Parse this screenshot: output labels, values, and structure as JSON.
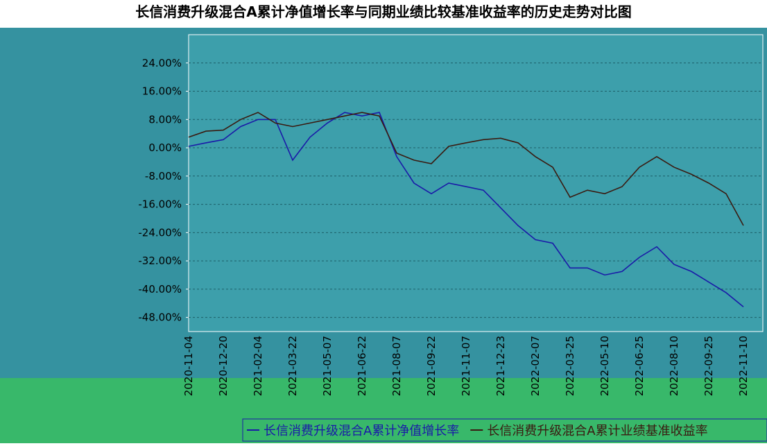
{
  "chart_data": {
    "type": "line",
    "title": "长信消费升级混合A累计净值增长率与同期业绩比较基准收益率的历史走势对比图",
    "categories": [
      "2020-11-04",
      null,
      "2020-12-20",
      null,
      "2021-02-04",
      null,
      "2021-03-22",
      null,
      "2021-05-07",
      null,
      "2021-06-22",
      null,
      "2021-08-07",
      null,
      "2021-09-22",
      null,
      "2021-11-07",
      null,
      "2021-12-23",
      null,
      "2022-02-07",
      null,
      "2022-03-25",
      null,
      "2022-05-10",
      null,
      "2022-06-25",
      null,
      "2022-08-10",
      null,
      "2022-09-25",
      null,
      "2022-11-10"
    ],
    "series": [
      {
        "name": "长信消费升级混合A累计净值增长率",
        "color": "#1a1aa8",
        "values": [
          0.4,
          1.4,
          2.3,
          6,
          8,
          8,
          -3.5,
          3,
          7,
          10,
          9,
          10,
          -2.5,
          -10,
          -13,
          -10,
          -11,
          -12,
          -17,
          -22,
          -26,
          -27,
          -34,
          -34,
          -36,
          -35,
          -31,
          -28,
          -33,
          -35,
          -38,
          -41,
          -45
        ]
      },
      {
        "name": "长信消费升级混合A累计业绩基准收益率",
        "color": "#3a1a10",
        "values": [
          3,
          4.7,
          5,
          8,
          10,
          7,
          6,
          7,
          8,
          9,
          10,
          9,
          -1.5,
          -3.5,
          -4.5,
          0.4,
          1.4,
          2.3,
          2.7,
          1.4,
          -2.5,
          -5.5,
          -14,
          -12,
          -13,
          -11,
          -5.5,
          -2.5,
          -5.5,
          -7.5,
          -10,
          -13,
          -22
        ]
      }
    ],
    "ylim": [
      -52,
      32
    ],
    "yticks": [
      {
        "value": -48,
        "label": "-48.00%"
      },
      {
        "value": -40,
        "label": "-40.00%"
      },
      {
        "value": -32,
        "label": "-32.00%"
      },
      {
        "value": -24,
        "label": "-24.00%"
      },
      {
        "value": -16,
        "label": "-16.00%"
      },
      {
        "value": -8,
        "label": "-8.00%"
      },
      {
        "value": 0,
        "label": "0.00%"
      },
      {
        "value": 8,
        "label": "8.00%"
      },
      {
        "value": 16,
        "label": "16.00%"
      },
      {
        "value": 24,
        "label": "24.00%"
      }
    ],
    "grid": true
  }
}
